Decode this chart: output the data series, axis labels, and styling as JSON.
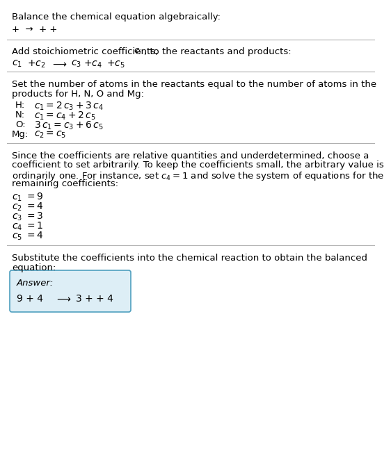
{
  "title": "Balance the chemical equation algebraically:",
  "line1": "+  →  + +",
  "section2_header_plain": "Add stoichiometric coefficients, ",
  "section2_header_ci": "$c_i$",
  "section2_header_rest": ", to the reactants and products:",
  "section3_header_line1": "Set the number of atoms in the reactants equal to the number of atoms in the",
  "section3_header_line2": "products for H, N, O and Mg:",
  "section4_lines": [
    "Since the coefficients are relative quantities and underdetermined, choose a",
    "coefficient to set arbitrarily. To keep the coefficients small, the arbitrary value is",
    "ordinarily one. For instance, set $c_4 = 1$ and solve the system of equations for the",
    "remaining coefficients:"
  ],
  "section5_line1": "Substitute the coefficients into the chemical reaction to obtain the balanced",
  "section5_line2": "equation:",
  "answer_label": "Answer:",
  "bg_color": "#ffffff",
  "text_color": "#000000",
  "box_edge_color": "#4f9fbf",
  "box_face_color": "#ddeef6",
  "sep_color": "#b0b0b0",
  "fs": 9.5,
  "fs_math": 10.0
}
